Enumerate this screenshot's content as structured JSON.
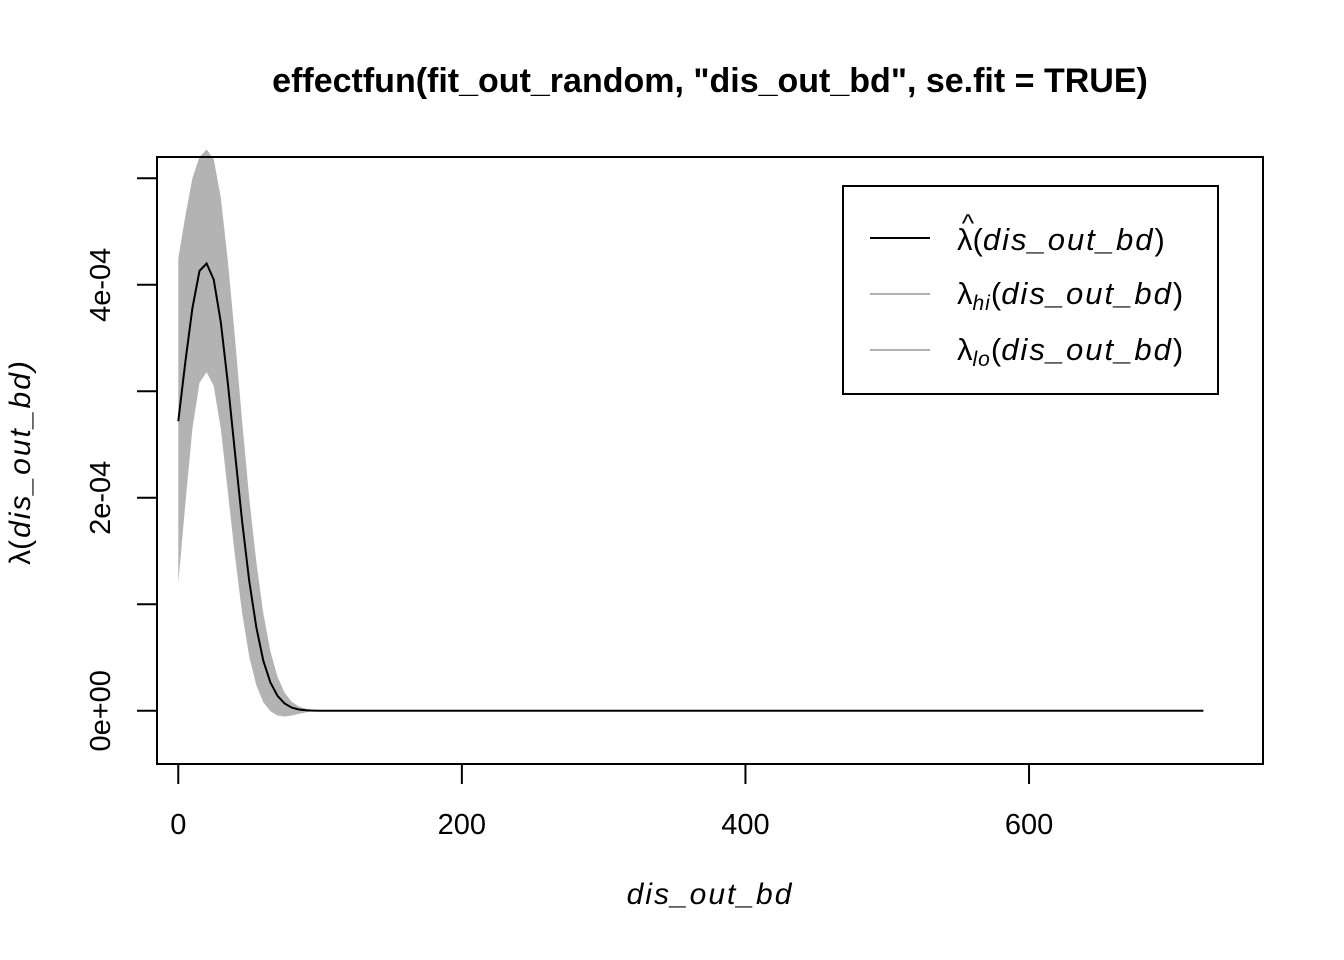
{
  "chart_data": {
    "type": "line",
    "title": "effectfun(fit_out_random, \"dis_out_bd\", se.fit = TRUE)",
    "xlabel": "dis_out_bd",
    "ylabel": {
      "symbol": "λ",
      "arg": "dis_out_bd"
    },
    "xlim": [
      -15,
      765
    ],
    "ylim": [
      -5e-05,
      0.00052
    ],
    "x_ticks": [
      0,
      200,
      400,
      600
    ],
    "x_tick_labels": [
      "0",
      "200",
      "400",
      "600"
    ],
    "y_ticks": [
      0,
      0.0001,
      0.0002,
      0.0003,
      0.0004,
      0.0005
    ],
    "y_tick_labels": [
      "0e+00",
      "",
      "2e-04",
      "",
      "4e-04",
      ""
    ],
    "x": [
      0,
      5,
      10,
      15,
      20,
      25,
      30,
      35,
      40,
      45,
      50,
      55,
      60,
      65,
      70,
      75,
      80,
      85,
      90,
      95,
      100,
      110,
      120,
      150,
      200,
      300,
      400,
      500,
      600,
      700,
      723
    ],
    "series": [
      {
        "name": {
          "symbol": "λ",
          "accent": "^",
          "arg": "dis_out_bd"
        },
        "color": "#000000",
        "values": [
          0.000272,
          0.000328,
          0.000378,
          0.000413,
          0.00042,
          0.000405,
          0.000365,
          0.000307,
          0.000242,
          0.000178,
          0.000122,
          7.85e-05,
          4.7e-05,
          2.65e-05,
          1.4e-05,
          6.8e-06,
          3e-06,
          1.2e-06,
          4e-07,
          1e-07,
          0,
          0,
          0,
          0,
          0,
          0,
          0,
          0,
          0,
          0,
          0
        ]
      },
      {
        "name": {
          "symbol": "λ",
          "subscript": "hi",
          "arg": "dis_out_bd"
        },
        "color": "#b3b3b3",
        "values": [
          0.000425,
          0.000465,
          0.0005,
          0.00052,
          0.000527,
          0.000518,
          0.000482,
          0.000422,
          0.00035,
          0.000272,
          0.0002,
          0.00014,
          9.15e-05,
          5.6e-05,
          3.2e-05,
          1.7e-05,
          8.5e-06,
          4e-06,
          1.8e-06,
          8e-07,
          3e-07,
          0,
          0,
          0,
          0,
          0,
          0,
          0,
          0,
          0,
          0
        ]
      },
      {
        "name": {
          "symbol": "λ",
          "subscript": "lo",
          "arg": "dis_out_bd"
        },
        "color": "#b3b3b3",
        "values": [
          0.00012,
          0.000195,
          0.000265,
          0.000308,
          0.000318,
          0.000305,
          0.000265,
          0.000205,
          0.000145,
          9.2e-05,
          5.1e-05,
          2.4e-05,
          8e-06,
          -5e-07,
          -4.5e-06,
          -5.5e-06,
          -4.5e-06,
          -3e-06,
          -1.5e-06,
          -5e-07,
          0,
          0,
          0,
          0,
          0,
          0,
          0,
          0,
          0,
          0,
          0
        ]
      }
    ],
    "confidence_band": {
      "fill": "#b3b3b3",
      "between": [
        "hi",
        "lo"
      ]
    },
    "legend": {
      "placement": "top-right"
    },
    "grid": false
  }
}
